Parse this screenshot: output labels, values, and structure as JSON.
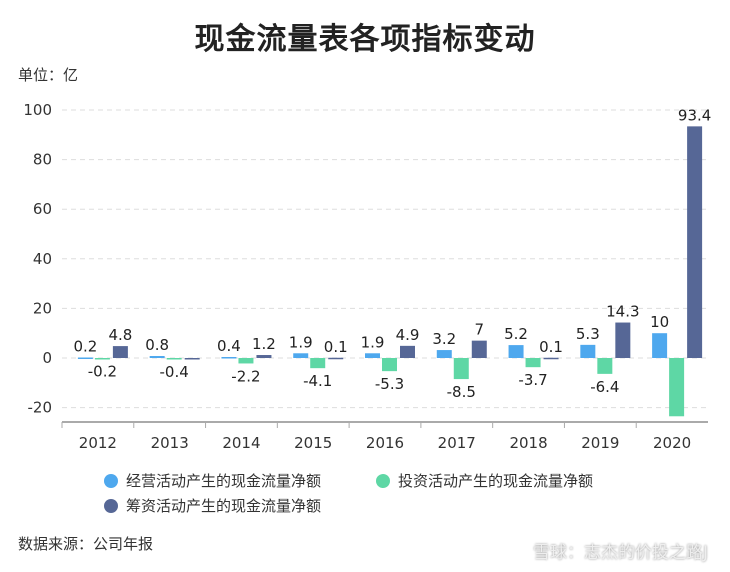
{
  "chart_data": {
    "type": "bar",
    "title": "现金流量表各项指标变动",
    "unit_label": "单位：亿",
    "source": "数据来源：公司年报",
    "watermark": "雪球：志杰的价投之路J",
    "categories": [
      "2012",
      "2013",
      "2014",
      "2015",
      "2016",
      "2017",
      "2018",
      "2019",
      "2020"
    ],
    "ylim": [
      -25,
      100
    ],
    "yticks": [
      -20,
      0,
      20,
      40,
      60,
      80,
      100
    ],
    "grid": true,
    "legend_position": "bottom",
    "series": [
      {
        "name": "经营活动产生的现金流量净额",
        "color": "#4ea8ee",
        "values": [
          0.2,
          0.8,
          0.4,
          1.9,
          1.9,
          3.2,
          5.2,
          5.3,
          10
        ],
        "labels": [
          "0.2",
          "0.8",
          "0.4",
          "1.9",
          "1.9",
          "3.2",
          "5.2",
          "5.3",
          "10"
        ]
      },
      {
        "name": "投资活动产生的现金流量净额",
        "color": "#5ed7a5",
        "values": [
          -0.2,
          -0.4,
          -2.2,
          -4.1,
          -5.3,
          -8.5,
          -3.7,
          -6.4,
          -23.5
        ],
        "labels": [
          "-0.2",
          "-0.4",
          "-2.2",
          "-4.1",
          "-5.3",
          "-8.5",
          "-3.7",
          "-6.4",
          null
        ]
      },
      {
        "name": "筹资活动产生的现金流量净额",
        "color": "#566796",
        "values": [
          4.8,
          -0.4,
          1.2,
          0.1,
          4.9,
          7,
          0.1,
          14.3,
          93.4
        ],
        "labels": [
          "4.8",
          null,
          "1.2",
          "0.1",
          "4.9",
          "7",
          "0.1",
          "14.3",
          "93.4"
        ]
      }
    ]
  }
}
